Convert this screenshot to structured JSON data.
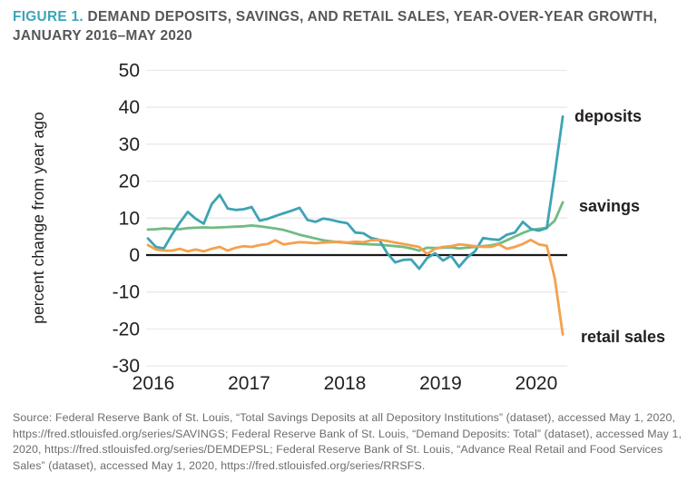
{
  "title": {
    "prefix": "FIGURE 1.",
    "line1": "DEMAND DEPOSITS, SAVINGS, AND RETAIL SALES, YEAR-OVER-YEAR GROWTH,",
    "line2": "JANUARY 2016–MAY 2020"
  },
  "source": "Source: Federal Reserve Bank of St. Louis, “Total Savings Deposits at all Depository Institutions” (dataset), accessed May 1, 2020, https://fred.stlouisfed.org/series/SAVINGS; Federal Reserve Bank of St. Louis, “Demand Deposits: Total” (dataset), accessed May 1, 2020, https://fred.stlouisfed.org/series/DEMDEPSL; Federal Reserve Bank of St. Louis, “Advance Real Retail and Food Services Sales” (dataset), accessed May 1, 2020, https://fred.stlouisfed.org/series/RRSFS.",
  "colors": {
    "accent_teal": "#3AA6B9",
    "title_gray": "#54565A",
    "source_gray": "#6A6C6E",
    "grid": "#E9E9E9",
    "zero_line": "#1A1A1A",
    "tick_text": "#231F20"
  },
  "chart_data": {
    "type": "line",
    "title": "Demand deposits, savings, and retail sales, year-over-year growth, January 2016 - May 2020",
    "xlabel": "",
    "ylabel": "percent change from year ago",
    "ylim": [
      -30,
      50
    ],
    "y_ticks": [
      50,
      40,
      30,
      20,
      10,
      0,
      -10,
      -20,
      -30
    ],
    "x_ticks": [
      "2016",
      "2017",
      "2018",
      "2019",
      "2020"
    ],
    "frequency": "monthly",
    "legend": "labels-at-line-ends",
    "grid": "horizontal-only",
    "months": [
      "2016-01",
      "2016-02",
      "2016-03",
      "2016-04",
      "2016-05",
      "2016-06",
      "2016-07",
      "2016-08",
      "2016-09",
      "2016-10",
      "2016-11",
      "2016-12",
      "2017-01",
      "2017-02",
      "2017-03",
      "2017-04",
      "2017-05",
      "2017-06",
      "2017-07",
      "2017-08",
      "2017-09",
      "2017-10",
      "2017-11",
      "2017-12",
      "2018-01",
      "2018-02",
      "2018-03",
      "2018-04",
      "2018-05",
      "2018-06",
      "2018-07",
      "2018-08",
      "2018-09",
      "2018-10",
      "2018-11",
      "2018-12",
      "2019-01",
      "2019-02",
      "2019-03",
      "2019-04",
      "2019-05",
      "2019-06",
      "2019-07",
      "2019-08",
      "2019-09",
      "2019-10",
      "2019-11",
      "2019-12",
      "2020-01",
      "2020-02",
      "2020-03",
      "2020-04",
      "2020-05"
    ],
    "series": [
      {
        "name": "deposits",
        "color": "#3EA3B5",
        "values": [
          4.5,
          2.2,
          1.8,
          5.5,
          8.8,
          11.7,
          9.8,
          8.5,
          13.8,
          16.3,
          12.6,
          12.2,
          12.4,
          13.0,
          9.3,
          9.8,
          10.6,
          11.3,
          12.0,
          12.8,
          9.5,
          9.0,
          9.9,
          9.5,
          9.0,
          8.6,
          6.1,
          5.9,
          4.6,
          4.1,
          0.5,
          -2.0,
          -1.3,
          -1.2,
          -3.7,
          -0.8,
          0.5,
          -1.5,
          -0.2,
          -3.2,
          -0.7,
          1.0,
          4.6,
          4.3,
          4.1,
          5.5,
          6.1,
          9.0,
          7.1,
          6.6,
          7.3,
          22.0,
          37.5
        ]
      },
      {
        "name": "savings",
        "color": "#72BB82",
        "values": [
          6.9,
          7.0,
          7.2,
          7.1,
          7.0,
          7.3,
          7.4,
          7.5,
          7.4,
          7.5,
          7.6,
          7.7,
          7.8,
          8.0,
          7.8,
          7.5,
          7.2,
          6.8,
          6.2,
          5.5,
          5.0,
          4.5,
          4.0,
          3.7,
          3.5,
          3.3,
          3.1,
          3.0,
          2.9,
          2.8,
          2.6,
          2.4,
          2.2,
          1.8,
          1.2,
          2.0,
          1.9,
          2.0,
          2.1,
          1.8,
          2.0,
          2.2,
          2.4,
          2.6,
          3.1,
          4.0,
          5.0,
          6.0,
          6.8,
          7.1,
          7.4,
          9.3,
          14.3
        ]
      },
      {
        "name": "retail sales",
        "color": "#F4A14D",
        "values": [
          2.7,
          1.5,
          1.2,
          1.2,
          1.7,
          1.0,
          1.5,
          1.0,
          1.7,
          2.2,
          1.2,
          2.0,
          2.4,
          2.2,
          2.7,
          3.0,
          4.0,
          2.9,
          3.2,
          3.5,
          3.4,
          3.2,
          3.4,
          3.5,
          3.6,
          3.4,
          3.6,
          3.5,
          4.0,
          4.1,
          3.8,
          3.4,
          3.0,
          2.6,
          2.2,
          0.3,
          1.7,
          2.2,
          2.4,
          2.9,
          2.7,
          2.4,
          2.2,
          2.2,
          2.9,
          1.7,
          2.2,
          3.0,
          4.1,
          2.9,
          2.5,
          -6.3,
          -21.5
        ]
      }
    ]
  }
}
